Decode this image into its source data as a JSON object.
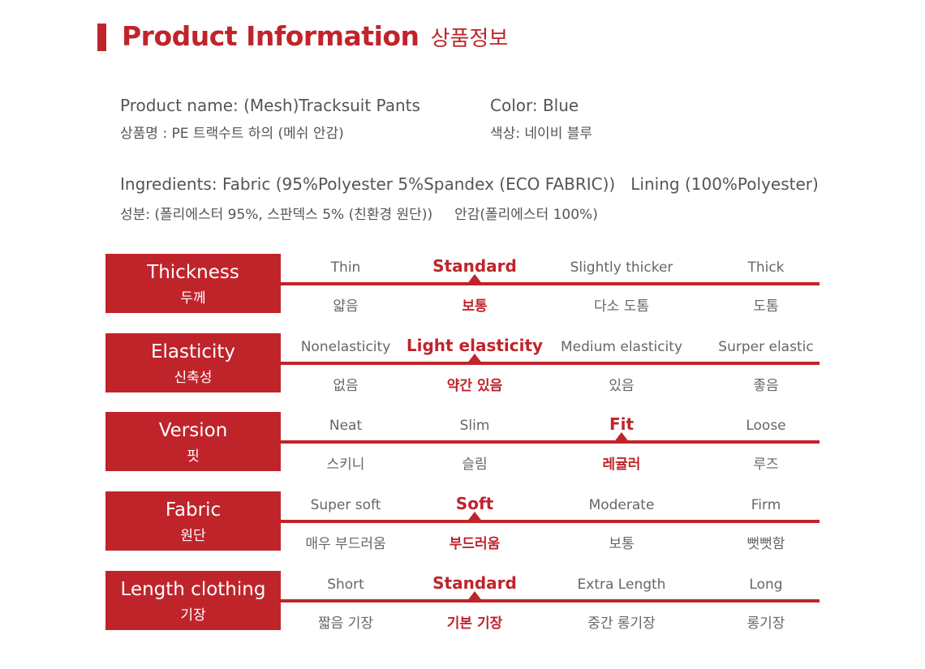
{
  "colors": {
    "accent": "#c0242b",
    "text": "#555555"
  },
  "header": {
    "title_en": "Product Information",
    "title_ko": "상품정보"
  },
  "info": {
    "name_en": "Product name: (Mesh)Tracksuit Pants",
    "name_ko": "상품명 : PE 트랙수트 하의 (메쉬 안감)",
    "color_en": "Color: Blue",
    "color_ko": "색상: 네이비 블루",
    "ingredients_en": "Ingredients: Fabric (95%Polyester 5%Spandex (ECO FABRIC))   Lining (100%Polyester)",
    "ingredients_ko": "성분: (폴리에스터 95%, 스판덱스 5% (친환경 원단))     안감(폴리에스터 100%)"
  },
  "attributes": [
    {
      "label_en": "Thickness",
      "label_ko": "두께",
      "selected_index": 1,
      "options": [
        {
          "en": "Thin",
          "ko": "얇음"
        },
        {
          "en": "Standard",
          "ko": "보통"
        },
        {
          "en": "Slightly thicker",
          "ko": "다소 도톰"
        },
        {
          "en": "Thick",
          "ko": "도톰"
        }
      ]
    },
    {
      "label_en": "Elasticity",
      "label_ko": "신축성",
      "selected_index": 1,
      "options": [
        {
          "en": "Nonelasticity",
          "ko": "없음"
        },
        {
          "en": "Light elasticity",
          "ko": "약간 있음"
        },
        {
          "en": "Medium elasticity",
          "ko": "있음"
        },
        {
          "en": "Surper elastic",
          "ko": "좋음"
        }
      ]
    },
    {
      "label_en": "Version",
      "label_ko": "핏",
      "selected_index": 2,
      "options": [
        {
          "en": "Neat",
          "ko": "스키니"
        },
        {
          "en": "Slim",
          "ko": "슬림"
        },
        {
          "en": "Fit",
          "ko": "레귤러"
        },
        {
          "en": "Loose",
          "ko": "루즈"
        }
      ]
    },
    {
      "label_en": "Fabric",
      "label_ko": "원단",
      "selected_index": 1,
      "options": [
        {
          "en": "Super soft",
          "ko": "매우 부드러움"
        },
        {
          "en": "Soft",
          "ko": "부드러움"
        },
        {
          "en": "Moderate",
          "ko": "보통"
        },
        {
          "en": "Firm",
          "ko": "뻣뻣함"
        }
      ]
    },
    {
      "label_en": "Length clothing",
      "label_ko": "기장",
      "selected_index": 1,
      "options": [
        {
          "en": "Short",
          "ko": "짧음 기장"
        },
        {
          "en": "Standard",
          "ko": "기본 기장"
        },
        {
          "en": "Extra Length",
          "ko": "중간 롱기장"
        },
        {
          "en": "Long",
          "ko": "롱기장"
        }
      ]
    }
  ]
}
